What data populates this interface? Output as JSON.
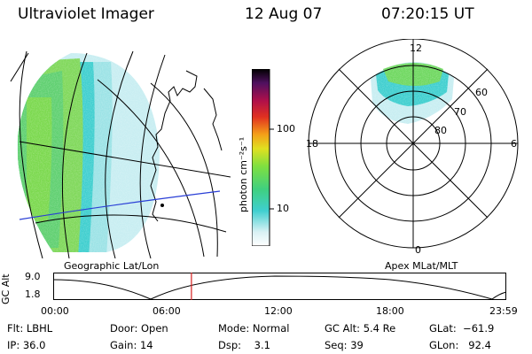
{
  "header": {
    "title": "Ultraviolet Imager",
    "date": "12 Aug 07",
    "time": "07:20:15 UT"
  },
  "left_panel": {
    "caption": "Geographic Lat/Lon"
  },
  "right_panel": {
    "caption": "Apex MLat/MLT",
    "mlt_labels": {
      "top": "12",
      "left": "18",
      "right": "6",
      "bottom": "0"
    },
    "lat_labels": [
      "60",
      "70",
      "80"
    ]
  },
  "colorbar": {
    "unit_label": "photon cm⁻²s⁻¹",
    "tick_labels": [
      "100",
      "10"
    ]
  },
  "timeline": {
    "ylabel": "GC Alt",
    "ytick_top": "9.0",
    "ytick_bottom": "1.8",
    "x_labels": [
      "00:00",
      "06:00",
      "12:00",
      "18:00",
      "23:59"
    ],
    "current_time_fraction": 0.305
  },
  "footer": {
    "col1": [
      "Flt: LBHL",
      "IP: 36.0"
    ],
    "col2": [
      "Door: Open",
      "Gain: 14"
    ],
    "col3": [
      "Mode: Normal",
      "Dsp:    3.1"
    ],
    "col4": [
      "GC Alt: 5.4 Re",
      "Seq: 39"
    ],
    "col5": [
      "GLat:  −61.9",
      "GLon:   92.4"
    ]
  },
  "colors": {
    "track": "#2a3fd6",
    "marker": "#d62020",
    "glow_green": "#4fd06a",
    "glow_cyan": "#3fcfcf",
    "glow_pale": "#c8eef2"
  }
}
